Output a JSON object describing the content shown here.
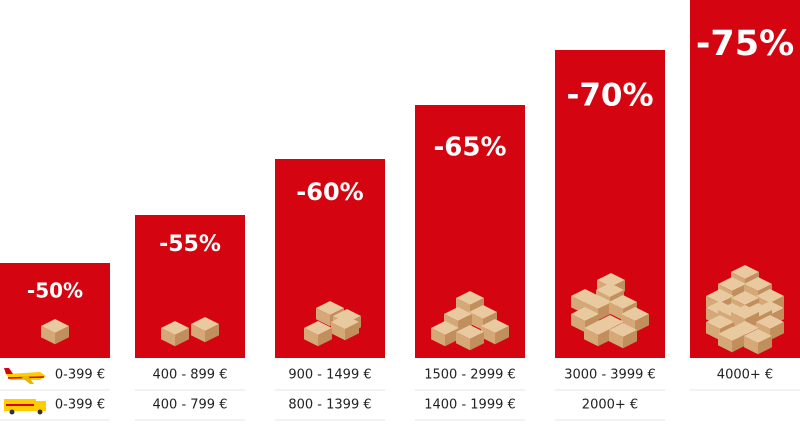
{
  "tiers": [
    {
      "discount": "-50%",
      "row1": "0-399 €",
      "row2": "0-399 €"
    },
    {
      "discount": "-55%",
      "row1": "400 - 899 €",
      "row2": "400 - 799 €"
    },
    {
      "discount": "-60%",
      "row1": "900 - 1499 €",
      "row2": "800 - 1399 €"
    },
    {
      "discount": "-65%",
      "row1": "1500 - 2999 €",
      "row2": "1400 - 1999 €"
    },
    {
      "discount": "-70%",
      "row1": "3000 - 3999 €",
      "row2": "2000+ €"
    },
    {
      "discount": "-75%",
      "row1": "4000+ €"
    }
  ]
}
